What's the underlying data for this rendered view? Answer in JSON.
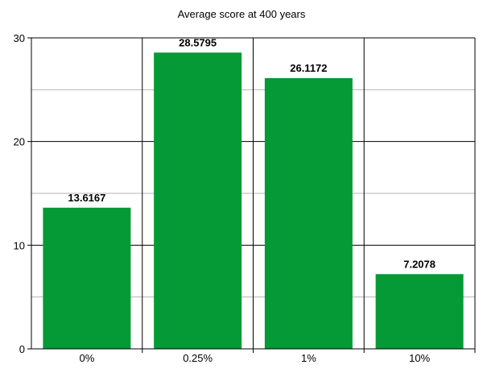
{
  "chart_data": {
    "type": "bar",
    "title": "Average score at 400 years",
    "xlabel": "",
    "ylabel": "",
    "categories": [
      "0%",
      "0.25%",
      "1%",
      "10%"
    ],
    "values": [
      13.6167,
      28.5795,
      26.1172,
      7.2078
    ],
    "value_labels": [
      "13.6167",
      "28.5795",
      "26.1172",
      "7.2078"
    ],
    "ylim": [
      0,
      30
    ],
    "yticks": [
      0,
      10,
      20,
      30
    ],
    "minor_gridlines": [
      5,
      15,
      25
    ],
    "grid": true,
    "legend": "none",
    "bar_color": "#059a35",
    "gridline_color": "#b4b4b4"
  }
}
